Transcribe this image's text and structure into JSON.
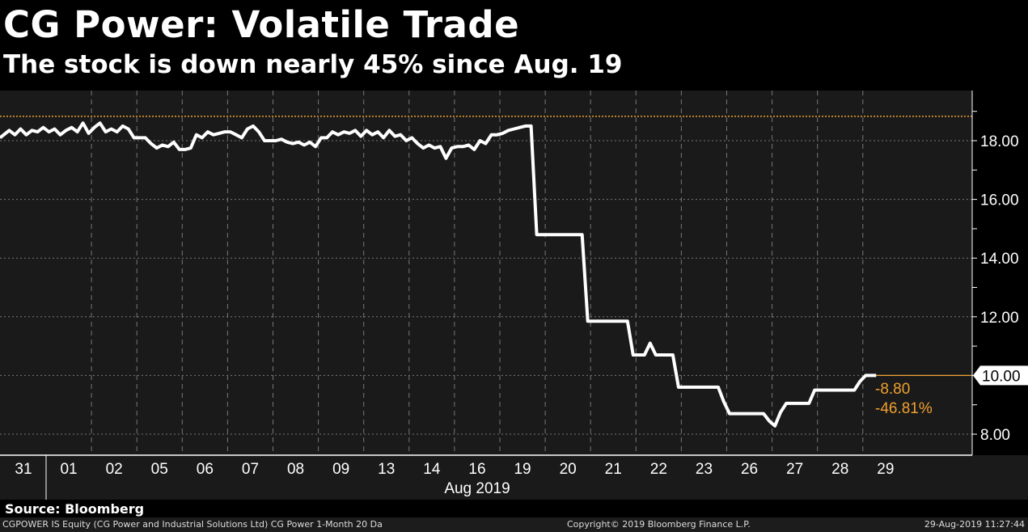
{
  "header": {
    "title": "CG Power: Volatile Trade",
    "subtitle": "The stock is down nearly 45% since Aug. 19"
  },
  "source": "Source: Bloomberg",
  "footer": {
    "description": "CGPOWER IS Equity (CG Power and Industrial Solutions Ltd) CG Power 1-Month 20 Da",
    "copyright": "Copyright© 2019 Bloomberg Finance L.P.",
    "timestamp": "29-Aug-2019 11:27:44"
  },
  "colors": {
    "line": "#ffffff",
    "accent": "#f0a030",
    "plot_bg": "#1a1a1a",
    "bg": "#000000"
  },
  "chart_data": {
    "type": "line",
    "title": "CG Power: Volatile Trade",
    "subtitle": "The stock is down nearly 45% since Aug. 19",
    "xlabel": "Aug 2019",
    "ylabel": "",
    "ylim": [
      7.3,
      19.7
    ],
    "yticks": [
      8,
      10,
      12,
      14,
      16,
      18
    ],
    "ytick_labels": [
      "8.00",
      "10.00",
      "12.00",
      "14.00",
      "16.00",
      "18.00"
    ],
    "grid": true,
    "categories": [
      "31",
      "01",
      "02",
      "05",
      "06",
      "07",
      "08",
      "09",
      "13",
      "14",
      "16",
      "19",
      "20",
      "21",
      "22",
      "23",
      "26",
      "27",
      "28",
      "29"
    ],
    "reference_line": 18.83,
    "last_value": 10.0,
    "last_value_label": "10.00",
    "change_abs": "-8.80",
    "change_pct": "-46.81%",
    "series": [
      {
        "name": "CGPOWER IS Equity",
        "intraday_by_day": [
          [
            18.1,
            18.35,
            18.2,
            18.4,
            18.2,
            18.35,
            18.3,
            18.45
          ],
          [
            18.3,
            18.4,
            18.2,
            18.35,
            18.45,
            18.3,
            18.6,
            18.25
          ],
          [
            18.45,
            18.6,
            18.3,
            18.4,
            18.3,
            18.5,
            18.4,
            18.1
          ],
          [
            18.1,
            18.1,
            17.9,
            17.75,
            17.85,
            17.8,
            17.95,
            17.7
          ],
          [
            17.7,
            17.75,
            18.2,
            18.1,
            18.3,
            18.2,
            18.25,
            18.3
          ],
          [
            18.3,
            18.2,
            18.1,
            18.4,
            18.5,
            18.3,
            18.0,
            18.0
          ],
          [
            18.0,
            18.05,
            17.95,
            17.9,
            17.95,
            17.85,
            17.95,
            17.8
          ],
          [
            18.1,
            18.1,
            18.3,
            18.2,
            18.3,
            18.25,
            18.35,
            18.15
          ],
          [
            18.35,
            18.2,
            18.3,
            18.1,
            18.35,
            18.15,
            18.2,
            18.0
          ],
          [
            18.1,
            17.9,
            17.75,
            17.85,
            17.75,
            17.8,
            17.4,
            17.75
          ],
          [
            17.8,
            17.8,
            17.85,
            17.7,
            18.0,
            17.9,
            18.2,
            18.2
          ],
          [
            18.25,
            18.35,
            18.4,
            18.45,
            18.5,
            18.5,
            14.8,
            14.8
          ],
          [
            14.8,
            14.8,
            14.8,
            14.8,
            14.8,
            14.8,
            14.8,
            11.85
          ],
          [
            11.85,
            11.85,
            11.85,
            11.85,
            11.85,
            11.85,
            11.85,
            10.7
          ],
          [
            10.7,
            10.7,
            11.1,
            10.7,
            10.7,
            10.7,
            10.7,
            9.6
          ],
          [
            9.6,
            9.6,
            9.6,
            9.6,
            9.6,
            9.6,
            9.6,
            9.1
          ],
          [
            8.7,
            8.7,
            8.7,
            8.7,
            8.7,
            8.7,
            8.7,
            8.45
          ],
          [
            8.28,
            8.75,
            9.05,
            9.05,
            9.05,
            9.05,
            9.05,
            9.5
          ],
          [
            9.5,
            9.5,
            9.5,
            9.5,
            9.5,
            9.5,
            9.5,
            9.8
          ],
          [
            10.0,
            10.0
          ]
        ]
      }
    ]
  }
}
